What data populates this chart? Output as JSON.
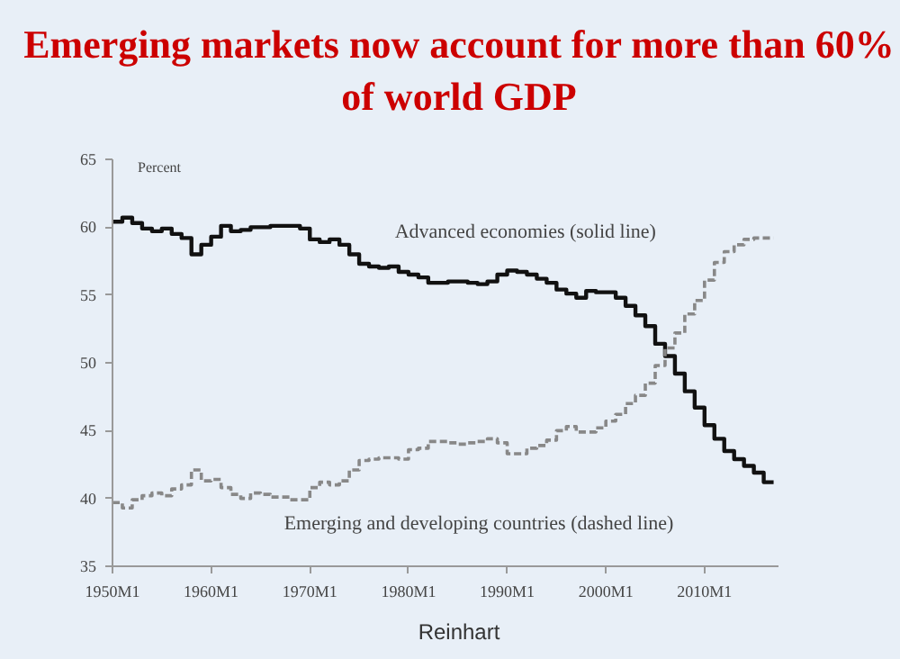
{
  "chart_data": {
    "type": "step",
    "title": "Emerging markets now account for more than 60% of world GDP",
    "ylabel": "Percent",
    "x": [
      "1950",
      "1951",
      "1952",
      "1953",
      "1954",
      "1955",
      "1956",
      "1957",
      "1958",
      "1959",
      "1960",
      "1961",
      "1962",
      "1963",
      "1964",
      "1965",
      "1966",
      "1967",
      "1968",
      "1969",
      "1970",
      "1971",
      "1972",
      "1973",
      "1974",
      "1975",
      "1976",
      "1977",
      "1978",
      "1979",
      "1980",
      "1981",
      "1982",
      "1983",
      "1984",
      "1985",
      "1986",
      "1987",
      "1988",
      "1989",
      "1990",
      "1991",
      "1992",
      "1993",
      "1994",
      "1995",
      "1996",
      "1997",
      "1998",
      "1999",
      "2000",
      "2001",
      "2002",
      "2003",
      "2004",
      "2005",
      "2006",
      "2007",
      "2008",
      "2009",
      "2010",
      "2011",
      "2012",
      "2013",
      "2014",
      "2015",
      "2016",
      "2017"
    ],
    "series": [
      {
        "color": "#111111",
        "line_style": "solid",
        "values": [
          60.4,
          60.7,
          60.3,
          59.9,
          59.7,
          59.9,
          59.5,
          59.2,
          58.0,
          58.7,
          59.3,
          60.1,
          59.7,
          59.8,
          60.0,
          60.0,
          60.1,
          60.1,
          60.1,
          59.9,
          59.1,
          58.9,
          59.1,
          58.7,
          58.0,
          57.3,
          57.1,
          57.0,
          57.1,
          56.7,
          56.5,
          56.3,
          55.9,
          55.9,
          56.0,
          56.0,
          55.9,
          55.8,
          56.0,
          56.5,
          56.8,
          56.7,
          56.5,
          56.2,
          55.9,
          55.4,
          55.1,
          54.8,
          55.3,
          55.2,
          55.2,
          54.8,
          54.2,
          53.5,
          52.7,
          51.4,
          50.5,
          49.2,
          47.9,
          46.7,
          45.4,
          44.4,
          43.5,
          42.9,
          42.4,
          41.9,
          41.2,
          41.2
        ]
      },
      {
        "color": "#888888",
        "line_style": "dashed",
        "values": [
          39.7,
          39.3,
          39.9,
          40.2,
          40.4,
          40.2,
          40.7,
          41.0,
          42.1,
          41.3,
          41.4,
          40.8,
          40.3,
          40.0,
          40.4,
          40.3,
          40.1,
          40.1,
          39.9,
          39.9,
          40.8,
          41.2,
          41.0,
          41.3,
          42.1,
          42.8,
          42.9,
          43.0,
          43.0,
          42.9,
          43.6,
          43.7,
          44.2,
          44.2,
          44.1,
          44.0,
          44.1,
          44.2,
          44.4,
          44.1,
          43.3,
          43.3,
          43.7,
          43.9,
          44.3,
          45.0,
          45.3,
          44.9,
          44.9,
          45.2,
          45.7,
          46.2,
          47.0,
          47.6,
          48.5,
          49.8,
          51.1,
          52.2,
          53.6,
          54.6,
          56.1,
          57.4,
          58.2,
          58.7,
          59.1,
          59.2,
          59.2,
          59.2
        ]
      }
    ],
    "xlim": [
      "1950-01",
      "2017-07"
    ],
    "ylim": [
      35,
      65
    ],
    "xticks": [
      {
        "value": "1950-01",
        "label": "1950M1"
      },
      {
        "value": "1960-01",
        "label": "1960M1"
      },
      {
        "value": "1970-01",
        "label": "1970M1"
      },
      {
        "value": "1980-01",
        "label": "1980M1"
      },
      {
        "value": "1990-01",
        "label": "1990M1"
      },
      {
        "value": "2000-01",
        "label": "2000M1"
      },
      {
        "value": "2010-01",
        "label": "2010M1"
      }
    ],
    "yticks": [
      35,
      40,
      45,
      50,
      55,
      60,
      65
    ],
    "grid": false,
    "annotations": [
      "Advanced economies (solid line)",
      "Emerging and developing countries (dashed line)",
      "Reinhart"
    ]
  }
}
